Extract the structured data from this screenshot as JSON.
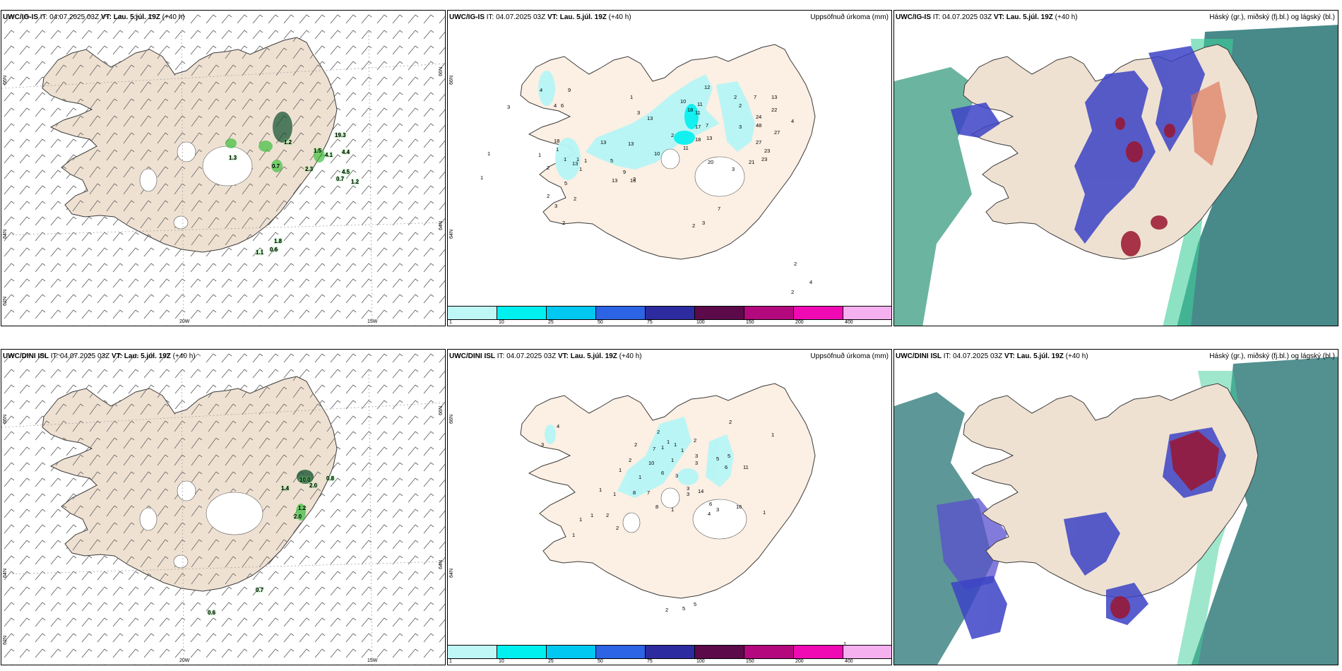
{
  "colors": {
    "land": "#efe1d2",
    "coast": "#3b3b3b",
    "precip_land": "#fcefe3",
    "precip_light": "#b7f6f6",
    "cloud_high": "#1a6b6b",
    "cloud_mid": "#3c43c6",
    "cloud_low": "#9a1530",
    "wind_green": "#3fbf3f"
  },
  "panels": [
    {
      "model": "UWC/IG-IS",
      "it_label": "IT:",
      "it_value": "04.07.2025 03Z",
      "vt_label": "VT:",
      "vt_value": "Lau. 5.júl. 19Z",
      "lead": "(+40 h)",
      "right_title": "",
      "axis": {
        "lat_top": "66N",
        "lat_mid": "64N",
        "lat_bot": "62N",
        "lon_left": "20W",
        "lon_right": "15W"
      },
      "markers": [
        "1.3",
        "1.2",
        "0.7",
        "2.3",
        "1.5",
        "4.1",
        "19.3",
        "4.4",
        "4.5",
        "0.7",
        "1.2",
        "1.8",
        "1.1",
        "0.6"
      ]
    },
    {
      "model": "UWC/IG-IS",
      "it_label": "IT:",
      "it_value": "04.07.2025 03Z",
      "vt_label": "VT:",
      "vt_value": "Lau. 5.júl. 19Z",
      "lead": "(+40 h)",
      "right_title": "Uppsöfnuð úrkoma (mm)",
      "axis": {
        "lat_top": "66N",
        "lat_mid": "64N"
      },
      "markers": [
        "9",
        "4",
        "4",
        "6",
        "3",
        "1",
        "3",
        "12",
        "2",
        "7",
        "13",
        "10",
        "2",
        "11",
        "22",
        "24",
        "18",
        "11",
        "3",
        "13",
        "48",
        "17",
        "7",
        "27",
        "2",
        "13",
        "18",
        "27",
        "23",
        "13",
        "10",
        "11",
        "4",
        "20",
        "21",
        "23",
        "1",
        "1",
        "13",
        "5",
        "9",
        "13",
        "13",
        "3",
        "2",
        "1",
        "13",
        "1",
        "1",
        "5",
        "18",
        "1",
        "2",
        "2",
        "2",
        "3",
        "2",
        "1",
        "7",
        "2",
        "3",
        "1",
        "2",
        "4",
        "2"
      ],
      "colorbar": {
        "ticks": [
          "1",
          "10",
          "25",
          "50",
          "75",
          "100",
          "150",
          "200",
          "400"
        ],
        "colors": [
          "#bff7f7",
          "#00f0f0",
          "#00c8f0",
          "#2d64e6",
          "#2c2ca0",
          "#5c0a4a",
          "#b4087e",
          "#f00ab4",
          "#f5b0f0"
        ]
      }
    },
    {
      "model": "UWC/IG-IS",
      "it_label": "IT:",
      "it_value": "04.07.2025 03Z",
      "vt_label": "VT:",
      "vt_value": "Lau. 5.júl. 19Z",
      "lead": "(+40 h)",
      "right_title": "Háský (gr.), miðský (fj.bl.) og lágský (bl.)"
    },
    {
      "model": "UWC/DINI ISL",
      "it_label": "IT:",
      "it_value": "04.07.2025 03Z",
      "vt_label": "VT:",
      "vt_value": "Lau. 5.júl. 19Z",
      "lead": "(+40 h)",
      "right_title": "",
      "axis": {
        "lat_top": "66N",
        "lat_mid": "64N",
        "lat_bot": "62N",
        "lon_left": "20W",
        "lon_right": "15W"
      },
      "markers": [
        "10.0",
        "2.0",
        "0.8",
        "1.4",
        "1.2",
        "2.0",
        "0.7",
        "0.6"
      ]
    },
    {
      "model": "UWC/DINI ISL",
      "it_label": "IT:",
      "it_value": "04.07.2025 03Z",
      "vt_label": "VT:",
      "vt_value": "Lau. 5.júl. 19Z",
      "lead": "(+40 h)",
      "right_title": "Uppsöfnuð úrkoma (mm)",
      "axis": {
        "lat_top": "66N",
        "lat_mid": "64N"
      },
      "markers": [
        "2",
        "1",
        "4",
        "2",
        "3",
        "1",
        "1",
        "2",
        "7",
        "1",
        "1",
        "2",
        "3",
        "5",
        "2",
        "10",
        "6",
        "1",
        "3",
        "5",
        "6",
        "11",
        "1",
        "3",
        "1",
        "8",
        "7",
        "1",
        "1",
        "3",
        "3",
        "14",
        "6",
        "4",
        "3",
        "16",
        "1",
        "8",
        "1",
        "2",
        "1",
        "2",
        "5",
        "5",
        "2",
        "1",
        "1",
        "1"
      ],
      "colorbar": {
        "ticks": [
          "1",
          "10",
          "25",
          "50",
          "75",
          "100",
          "150",
          "200",
          "400"
        ],
        "colors": [
          "#bff7f7",
          "#00f0f0",
          "#00c8f0",
          "#2d64e6",
          "#2c2ca0",
          "#5c0a4a",
          "#b4087e",
          "#f00ab4",
          "#f5b0f0"
        ]
      }
    },
    {
      "model": "UWC/DINI ISL",
      "it_label": "IT:",
      "it_value": "04.07.2025 03Z",
      "vt_label": "VT:",
      "vt_value": "Lau. 5.júl. 19Z",
      "lead": "(+40 h)",
      "right_title": "Háský (gr.), miðský (fj.bl.) og lágský (bl.)"
    }
  ]
}
